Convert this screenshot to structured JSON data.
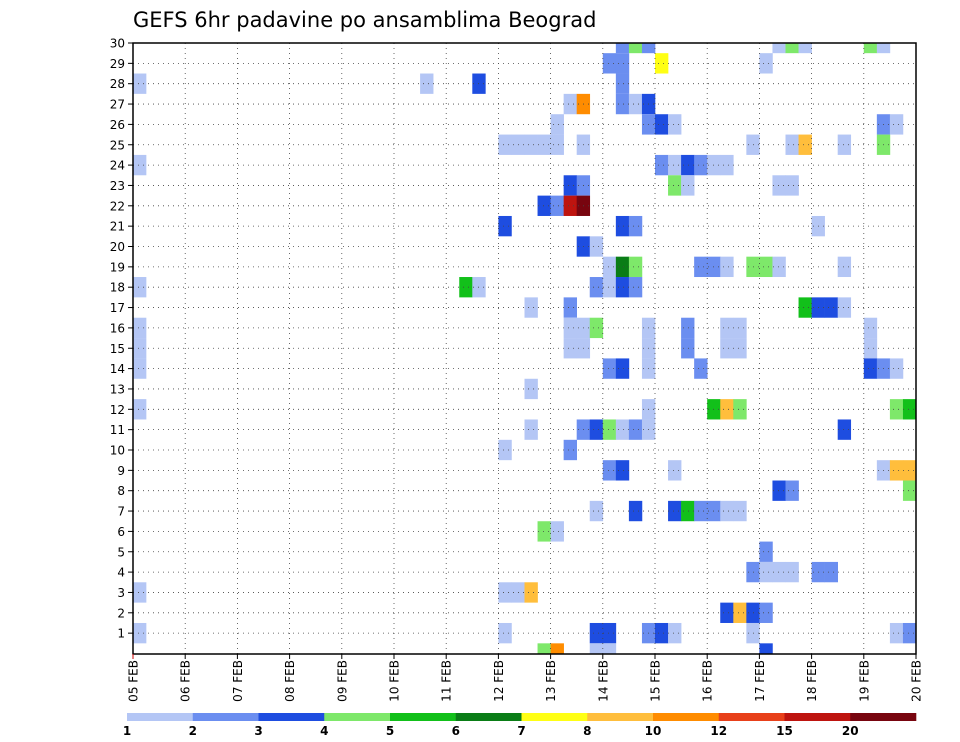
{
  "chart_data": {
    "type": "heatmap",
    "title": "GEFS 6hr padavine po ansamblima Beograd",
    "x_tick_labels": [
      "05 FEB",
      "06 FEB",
      "07 FEB",
      "08 FEB",
      "09 FEB",
      "10 FEB",
      "11 FEB",
      "12 FEB",
      "13 FEB",
      "14 FEB",
      "15 FEB",
      "16 FEB",
      "17 FEB",
      "18 FEB",
      "19 FEB",
      "20 FEB"
    ],
    "y_ticks": [
      1,
      2,
      3,
      4,
      5,
      6,
      7,
      8,
      9,
      10,
      11,
      12,
      13,
      14,
      15,
      16,
      17,
      18,
      19,
      20,
      21,
      22,
      23,
      24,
      25,
      26,
      27,
      28,
      29,
      30
    ],
    "x_steps_per_day": 4,
    "grid": true,
    "colorbar": {
      "labels": [
        "1",
        "2",
        "3",
        "4",
        "5",
        "6",
        "7",
        "8",
        "10",
        "12",
        "15",
        "20"
      ],
      "colors": [
        "#b4c6f5",
        "#6b8ef0",
        "#1e4de0",
        "#7ee86a",
        "#12c01a",
        "#0a7d16",
        "#ffff14",
        "#ffbe3c",
        "#ff8c00",
        "#e8401a",
        "#be140f",
        "#78050f"
      ]
    },
    "cells": [
      {
        "member": 30,
        "step": 37,
        "level": 2
      },
      {
        "member": 30,
        "step": 38,
        "level": 4
      },
      {
        "member": 30,
        "step": 39,
        "level": 2
      },
      {
        "member": 30,
        "step": 49,
        "level": 1
      },
      {
        "member": 30,
        "step": 50,
        "level": 4
      },
      {
        "member": 30,
        "step": 51,
        "level": 1
      },
      {
        "member": 30,
        "step": 56,
        "level": 4
      },
      {
        "member": 30,
        "step": 57,
        "level": 1
      },
      {
        "member": 29,
        "step": 36,
        "level": 2
      },
      {
        "member": 29,
        "step": 37,
        "level": 2
      },
      {
        "member": 29,
        "step": 40,
        "level": 7
      },
      {
        "member": 29,
        "step": 48,
        "level": 1
      },
      {
        "member": 28,
        "step": 0,
        "level": 1
      },
      {
        "member": 28,
        "step": 22,
        "level": 1
      },
      {
        "member": 28,
        "step": 26,
        "level": 3
      },
      {
        "member": 28,
        "step": 37,
        "level": 2
      },
      {
        "member": 27,
        "step": 33,
        "level": 1
      },
      {
        "member": 27,
        "step": 34,
        "level": 9
      },
      {
        "member": 27,
        "step": 37,
        "level": 2
      },
      {
        "member": 27,
        "step": 38,
        "level": 1
      },
      {
        "member": 27,
        "step": 39,
        "level": 3
      },
      {
        "member": 26,
        "step": 32,
        "level": 1
      },
      {
        "member": 26,
        "step": 39,
        "level": 2
      },
      {
        "member": 26,
        "step": 40,
        "level": 3
      },
      {
        "member": 26,
        "step": 41,
        "level": 1
      },
      {
        "member": 26,
        "step": 57,
        "level": 2
      },
      {
        "member": 26,
        "step": 58,
        "level": 1
      },
      {
        "member": 25,
        "step": 28,
        "level": 1
      },
      {
        "member": 25,
        "step": 29,
        "level": 1
      },
      {
        "member": 25,
        "step": 30,
        "level": 1
      },
      {
        "member": 25,
        "step": 31,
        "level": 1
      },
      {
        "member": 25,
        "step": 32,
        "level": 1
      },
      {
        "member": 25,
        "step": 34,
        "level": 1
      },
      {
        "member": 25,
        "step": 47,
        "level": 1
      },
      {
        "member": 25,
        "step": 50,
        "level": 1
      },
      {
        "member": 25,
        "step": 51,
        "level": 8
      },
      {
        "member": 25,
        "step": 54,
        "level": 1
      },
      {
        "member": 25,
        "step": 57,
        "level": 4
      },
      {
        "member": 24,
        "step": 0,
        "level": 1
      },
      {
        "member": 24,
        "step": 40,
        "level": 2
      },
      {
        "member": 24,
        "step": 41,
        "level": 1
      },
      {
        "member": 24,
        "step": 42,
        "level": 3
      },
      {
        "member": 24,
        "step": 43,
        "level": 2
      },
      {
        "member": 24,
        "step": 44,
        "level": 1
      },
      {
        "member": 24,
        "step": 45,
        "level": 1
      },
      {
        "member": 23,
        "step": 33,
        "level": 3
      },
      {
        "member": 23,
        "step": 34,
        "level": 2
      },
      {
        "member": 23,
        "step": 41,
        "level": 4
      },
      {
        "member": 23,
        "step": 42,
        "level": 1
      },
      {
        "member": 23,
        "step": 49,
        "level": 1
      },
      {
        "member": 23,
        "step": 50,
        "level": 1
      },
      {
        "member": 22,
        "step": 31,
        "level": 3
      },
      {
        "member": 22,
        "step": 32,
        "level": 2
      },
      {
        "member": 22,
        "step": 33,
        "level": 11
      },
      {
        "member": 22,
        "step": 34,
        "level": 12
      },
      {
        "member": 21,
        "step": 28,
        "level": 3
      },
      {
        "member": 21,
        "step": 37,
        "level": 3
      },
      {
        "member": 21,
        "step": 38,
        "level": 2
      },
      {
        "member": 21,
        "step": 52,
        "level": 1
      },
      {
        "member": 20,
        "step": 34,
        "level": 3
      },
      {
        "member": 20,
        "step": 35,
        "level": 1
      },
      {
        "member": 19,
        "step": 36,
        "level": 1
      },
      {
        "member": 19,
        "step": 37,
        "level": 6
      },
      {
        "member": 19,
        "step": 38,
        "level": 4
      },
      {
        "member": 19,
        "step": 43,
        "level": 2
      },
      {
        "member": 19,
        "step": 44,
        "level": 2
      },
      {
        "member": 19,
        "step": 45,
        "level": 1
      },
      {
        "member": 19,
        "step": 47,
        "level": 4
      },
      {
        "member": 19,
        "step": 48,
        "level": 4
      },
      {
        "member": 19,
        "step": 49,
        "level": 1
      },
      {
        "member": 19,
        "step": 54,
        "level": 1
      },
      {
        "member": 18,
        "step": 0,
        "level": 1
      },
      {
        "member": 18,
        "step": 25,
        "level": 5
      },
      {
        "member": 18,
        "step": 26,
        "level": 1
      },
      {
        "member": 18,
        "step": 35,
        "level": 2
      },
      {
        "member": 18,
        "step": 36,
        "level": 1
      },
      {
        "member": 18,
        "step": 37,
        "level": 3
      },
      {
        "member": 18,
        "step": 38,
        "level": 2
      },
      {
        "member": 17,
        "step": 30,
        "level": 1
      },
      {
        "member": 17,
        "step": 33,
        "level": 2
      },
      {
        "member": 17,
        "step": 51,
        "level": 5
      },
      {
        "member": 17,
        "step": 52,
        "level": 3
      },
      {
        "member": 17,
        "step": 53,
        "level": 3
      },
      {
        "member": 17,
        "step": 54,
        "level": 1
      },
      {
        "member": 16,
        "step": 0,
        "level": 1
      },
      {
        "member": 16,
        "step": 33,
        "level": 1
      },
      {
        "member": 16,
        "step": 34,
        "level": 1
      },
      {
        "member": 16,
        "step": 35,
        "level": 4
      },
      {
        "member": 16,
        "step": 39,
        "level": 1
      },
      {
        "member": 16,
        "step": 42,
        "level": 2
      },
      {
        "member": 16,
        "step": 45,
        "level": 1
      },
      {
        "member": 16,
        "step": 46,
        "level": 1
      },
      {
        "member": 16,
        "step": 56,
        "level": 1
      },
      {
        "member": 15,
        "step": 0,
        "level": 1
      },
      {
        "member": 15,
        "step": 33,
        "level": 1
      },
      {
        "member": 15,
        "step": 34,
        "level": 1
      },
      {
        "member": 15,
        "step": 39,
        "level": 1
      },
      {
        "member": 15,
        "step": 42,
        "level": 2
      },
      {
        "member": 15,
        "step": 45,
        "level": 1
      },
      {
        "member": 15,
        "step": 46,
        "level": 1
      },
      {
        "member": 15,
        "step": 56,
        "level": 1
      },
      {
        "member": 14,
        "step": 0,
        "level": 1
      },
      {
        "member": 14,
        "step": 36,
        "level": 2
      },
      {
        "member": 14,
        "step": 37,
        "level": 3
      },
      {
        "member": 14,
        "step": 39,
        "level": 1
      },
      {
        "member": 14,
        "step": 43,
        "level": 2
      },
      {
        "member": 14,
        "step": 56,
        "level": 3
      },
      {
        "member": 14,
        "step": 57,
        "level": 2
      },
      {
        "member": 14,
        "step": 58,
        "level": 1
      },
      {
        "member": 13,
        "step": 30,
        "level": 1
      },
      {
        "member": 12,
        "step": 0,
        "level": 1
      },
      {
        "member": 12,
        "step": 39,
        "level": 1
      },
      {
        "member": 12,
        "step": 44,
        "level": 5
      },
      {
        "member": 12,
        "step": 45,
        "level": 8
      },
      {
        "member": 12,
        "step": 46,
        "level": 4
      },
      {
        "member": 12,
        "step": 58,
        "level": 4
      },
      {
        "member": 12,
        "step": 59,
        "level": 5
      },
      {
        "member": 11,
        "step": 30,
        "level": 1
      },
      {
        "member": 11,
        "step": 34,
        "level": 2
      },
      {
        "member": 11,
        "step": 35,
        "level": 3
      },
      {
        "member": 11,
        "step": 36,
        "level": 4
      },
      {
        "member": 11,
        "step": 37,
        "level": 1
      },
      {
        "member": 11,
        "step": 38,
        "level": 2
      },
      {
        "member": 11,
        "step": 39,
        "level": 1
      },
      {
        "member": 11,
        "step": 54,
        "level": 3
      },
      {
        "member": 10,
        "step": 28,
        "level": 1
      },
      {
        "member": 10,
        "step": 33,
        "level": 2
      },
      {
        "member": 9,
        "step": 36,
        "level": 2
      },
      {
        "member": 9,
        "step": 37,
        "level": 3
      },
      {
        "member": 9,
        "step": 41,
        "level": 1
      },
      {
        "member": 9,
        "step": 57,
        "level": 1
      },
      {
        "member": 9,
        "step": 58,
        "level": 8
      },
      {
        "member": 9,
        "step": 59,
        "level": 8
      },
      {
        "member": 8,
        "step": 49,
        "level": 3
      },
      {
        "member": 8,
        "step": 50,
        "level": 2
      },
      {
        "member": 8,
        "step": 59,
        "level": 4
      },
      {
        "member": 7,
        "step": 35,
        "level": 1
      },
      {
        "member": 7,
        "step": 38,
        "level": 3
      },
      {
        "member": 7,
        "step": 41,
        "level": 3
      },
      {
        "member": 7,
        "step": 42,
        "level": 5
      },
      {
        "member": 7,
        "step": 43,
        "level": 2
      },
      {
        "member": 7,
        "step": 44,
        "level": 2
      },
      {
        "member": 7,
        "step": 45,
        "level": 1
      },
      {
        "member": 7,
        "step": 46,
        "level": 1
      },
      {
        "member": 6,
        "step": 31,
        "level": 4
      },
      {
        "member": 6,
        "step": 32,
        "level": 1
      },
      {
        "member": 5,
        "step": 48,
        "level": 2
      },
      {
        "member": 4,
        "step": 47,
        "level": 2
      },
      {
        "member": 4,
        "step": 48,
        "level": 1
      },
      {
        "member": 4,
        "step": 49,
        "level": 1
      },
      {
        "member": 4,
        "step": 50,
        "level": 1
      },
      {
        "member": 4,
        "step": 52,
        "level": 2
      },
      {
        "member": 4,
        "step": 53,
        "level": 2
      },
      {
        "member": 3,
        "step": 0,
        "level": 1
      },
      {
        "member": 3,
        "step": 28,
        "level": 1
      },
      {
        "member": 3,
        "step": 29,
        "level": 1
      },
      {
        "member": 3,
        "step": 30,
        "level": 8
      },
      {
        "member": 2,
        "step": 45,
        "level": 3
      },
      {
        "member": 2,
        "step": 46,
        "level": 8
      },
      {
        "member": 2,
        "step": 47,
        "level": 3
      },
      {
        "member": 2,
        "step": 48,
        "level": 2
      },
      {
        "member": 1,
        "step": 0,
        "level": 1
      },
      {
        "member": 1,
        "step": 28,
        "level": 1
      },
      {
        "member": 1,
        "step": 35,
        "level": 3
      },
      {
        "member": 1,
        "step": 36,
        "level": 3
      },
      {
        "member": 1,
        "step": 39,
        "level": 2
      },
      {
        "member": 1,
        "step": 40,
        "level": 3
      },
      {
        "member": 1,
        "step": 41,
        "level": 1
      },
      {
        "member": 1,
        "step": 47,
        "level": 1
      },
      {
        "member": 1,
        "step": 58,
        "level": 1
      },
      {
        "member": 1,
        "step": 59,
        "level": 2
      },
      {
        "member": 0,
        "step": 31,
        "level": 4
      },
      {
        "member": 0,
        "step": 32,
        "level": 9
      },
      {
        "member": 0,
        "step": 35,
        "level": 1
      },
      {
        "member": 0,
        "step": 36,
        "level": 1
      },
      {
        "member": 0,
        "step": 48,
        "level": 3
      }
    ]
  }
}
